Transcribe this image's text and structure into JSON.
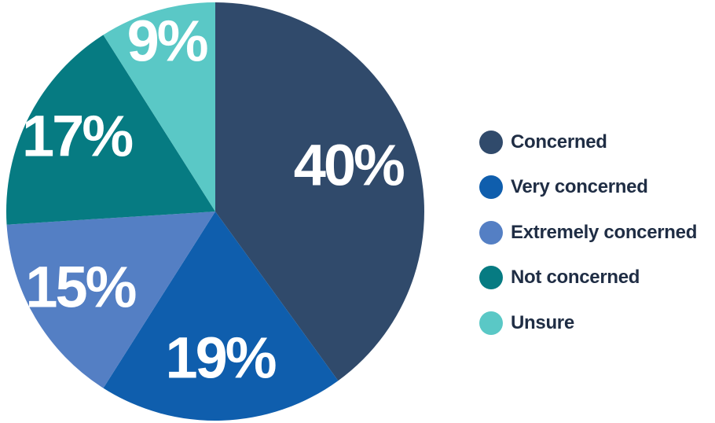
{
  "chart_data": {
    "type": "pie",
    "title": "",
    "slices": [
      {
        "label": "Concerned",
        "value": 40,
        "display": "40%",
        "color": "#304a6b"
      },
      {
        "label": "Very concerned",
        "value": 19,
        "display": "19%",
        "color": "#0f5ead"
      },
      {
        "label": "Extremely concerned",
        "value": 15,
        "display": "15%",
        "color": "#547fc4"
      },
      {
        "label": "Not concerned",
        "value": 17,
        "display": "17%",
        "color": "#067b82"
      },
      {
        "label": "Unsure",
        "value": 9,
        "display": "9%",
        "color": "#5ac8c6"
      }
    ],
    "start_angle_deg": 0,
    "direction": "clockwise",
    "legend_position": "right"
  }
}
